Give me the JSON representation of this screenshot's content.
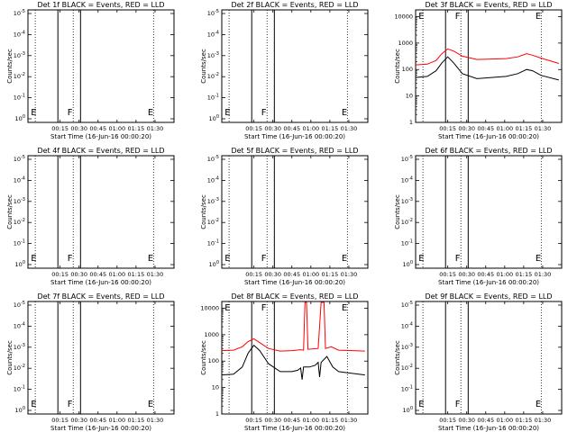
{
  "figure": {
    "colors": {
      "events": "#000000",
      "lld": "#ff0000",
      "axes": "#000000",
      "background": "#ffffff"
    }
  },
  "chart_data": [
    {
      "type": "line",
      "title": "Det 1f BLACK = Events, RED = LLD",
      "xlabel": "Start Time (16-Jun-16 00:00:20)",
      "ylabel": "Counts/sec",
      "xticks": [
        "00:15",
        "00:30",
        "00:45",
        "01:00",
        "01:15",
        "01:30"
      ],
      "yticks": [
        "10^0",
        "10^-1",
        "10^-2",
        "10^-3",
        "10^-4",
        "10^-5"
      ],
      "ylog": true,
      "empty": true,
      "interval_markers": [
        "E",
        "F",
        "E"
      ],
      "series": []
    },
    {
      "type": "line",
      "title": "Det 2f BLACK = Events, RED = LLD",
      "xlabel": "Start Time (16-Jun-16 00:00:20)",
      "ylabel": "Counts/sec",
      "xticks": [
        "00:15",
        "00:30",
        "00:45",
        "01:00",
        "01:15",
        "01:30"
      ],
      "yticks": [
        "10^0",
        "10^-1",
        "10^-2",
        "10^-3",
        "10^-4",
        "10^-5"
      ],
      "ylog": true,
      "empty": true,
      "interval_markers": [
        "E",
        "F",
        "E"
      ],
      "series": []
    },
    {
      "type": "line",
      "title": "Det 3f BLACK = Events, RED = LLD",
      "xlabel": "Start Time (16-Jun-16 00:00:20)",
      "ylabel": "Counts/sec",
      "xticks": [
        "00:15",
        "00:30",
        "00:45",
        "01:00",
        "01:15",
        "01:30"
      ],
      "yticks": [
        "1",
        "10",
        "100",
        "1000",
        "10000"
      ],
      "ylog": true,
      "empty": false,
      "interval_markers": [
        "E",
        "F",
        "E"
      ],
      "series": [
        {
          "color": "#ff0000",
          "pts": [
            [
              0,
              150
            ],
            [
              8,
              160
            ],
            [
              14,
              220
            ],
            [
              18,
              400
            ],
            [
              22,
              600
            ],
            [
              26,
              500
            ],
            [
              32,
              320
            ],
            [
              42,
              240
            ],
            [
              52,
              250
            ],
            [
              62,
              260
            ],
            [
              70,
              300
            ],
            [
              76,
              400
            ],
            [
              80,
              350
            ],
            [
              86,
              270
            ],
            [
              98,
              170
            ]
          ]
        },
        {
          "color": "#000000",
          "pts": [
            [
              0,
              50
            ],
            [
              8,
              55
            ],
            [
              14,
              90
            ],
            [
              18,
              180
            ],
            [
              22,
              300
            ],
            [
              26,
              180
            ],
            [
              32,
              70
            ],
            [
              42,
              45
            ],
            [
              52,
              50
            ],
            [
              62,
              55
            ],
            [
              70,
              70
            ],
            [
              76,
              100
            ],
            [
              80,
              90
            ],
            [
              86,
              60
            ],
            [
              98,
              40
            ]
          ]
        }
      ]
    },
    {
      "type": "line",
      "title": "Det 4f BLACK = Events, RED = LLD",
      "xlabel": "Start Time (16-Jun-16 00:00:20)",
      "ylabel": "Counts/sec",
      "xticks": [
        "00:15",
        "00:30",
        "00:45",
        "01:00",
        "01:15",
        "01:30"
      ],
      "yticks": [
        "10^0",
        "10^-1",
        "10^-2",
        "10^-3",
        "10^-4",
        "10^-5"
      ],
      "ylog": true,
      "empty": true,
      "interval_markers": [
        "E",
        "F",
        "E"
      ],
      "series": []
    },
    {
      "type": "line",
      "title": "Det 5f BLACK = Events, RED = LLD",
      "xlabel": "Start Time (16-Jun-16 00:00:20)",
      "ylabel": "Counts/sec",
      "xticks": [
        "00:15",
        "00:30",
        "00:45",
        "01:00",
        "01:15",
        "01:30"
      ],
      "yticks": [
        "10^0",
        "10^-1",
        "10^-2",
        "10^-3",
        "10^-4",
        "10^-5"
      ],
      "ylog": true,
      "empty": true,
      "interval_markers": [
        "E",
        "F",
        "E"
      ],
      "series": []
    },
    {
      "type": "line",
      "title": "Det 6f BLACK = Events, RED = LLD",
      "xlabel": "Start Time (16-Jun-16 00:00:20)",
      "ylabel": "Counts/sec",
      "xticks": [
        "00:15",
        "00:30",
        "00:45",
        "01:00",
        "01:15",
        "01:30"
      ],
      "yticks": [
        "10^0",
        "10^-1",
        "10^-2",
        "10^-3",
        "10^-4",
        "10^-5"
      ],
      "ylog": true,
      "empty": true,
      "interval_markers": [
        "E",
        "F",
        "E"
      ],
      "series": []
    },
    {
      "type": "line",
      "title": "Det 7f BLACK = Events, RED = LLD",
      "xlabel": "Start Time (16-Jun-16 00:00:20)",
      "ylabel": "Counts/sec",
      "xticks": [
        "00:15",
        "00:30",
        "00:45",
        "01:00",
        "01:15",
        "01:30"
      ],
      "yticks": [
        "10^0",
        "10^-1",
        "10^-2",
        "10^-3",
        "10^-4",
        "10^-5"
      ],
      "ylog": true,
      "empty": true,
      "interval_markers": [
        "E",
        "F",
        "E"
      ],
      "series": []
    },
    {
      "type": "line",
      "title": "Det 8f BLACK = Events, RED = LLD",
      "xlabel": "Start Time (16-Jun-16 00:00:20)",
      "ylabel": "Counts/sec",
      "xticks": [
        "00:15",
        "00:30",
        "00:45",
        "01:00",
        "01:15",
        "01:30"
      ],
      "yticks": [
        "1",
        "10",
        "100",
        "1000",
        "10000"
      ],
      "ylog": true,
      "empty": false,
      "interval_markers": [
        "E",
        "F",
        "E"
      ],
      "series": [
        {
          "color": "#ff0000",
          "pts": [
            [
              0,
              250
            ],
            [
              8,
              260
            ],
            [
              14,
              350
            ],
            [
              18,
              550
            ],
            [
              22,
              700
            ],
            [
              26,
              500
            ],
            [
              32,
              300
            ],
            [
              40,
              240
            ],
            [
              48,
              250
            ],
            [
              54,
              270
            ],
            [
              56,
              260
            ],
            [
              57,
              18000
            ],
            [
              58,
              18000
            ],
            [
              59,
              280
            ],
            [
              66,
              300
            ],
            [
              68,
              18000
            ],
            [
              70,
              18000
            ],
            [
              71,
              300
            ],
            [
              75,
              350
            ],
            [
              80,
              260
            ],
            [
              98,
              240
            ]
          ]
        },
        {
          "color": "#000000",
          "pts": [
            [
              0,
              30
            ],
            [
              8,
              32
            ],
            [
              14,
              60
            ],
            [
              18,
              200
            ],
            [
              22,
              400
            ],
            [
              26,
              250
            ],
            [
              32,
              80
            ],
            [
              40,
              40
            ],
            [
              48,
              40
            ],
            [
              52,
              45
            ],
            [
              54,
              55
            ],
            [
              55,
              20
            ],
            [
              56,
              60
            ],
            [
              60,
              60
            ],
            [
              64,
              70
            ],
            [
              66,
              90
            ],
            [
              67,
              25
            ],
            [
              68,
              90
            ],
            [
              72,
              150
            ],
            [
              76,
              60
            ],
            [
              80,
              40
            ],
            [
              98,
              30
            ]
          ]
        }
      ]
    },
    {
      "type": "line",
      "title": "Det 9f BLACK = Events, RED = LLD",
      "xlabel": "Start Time (16-Jun-16 00:00:20)",
      "ylabel": "Counts/sec",
      "xticks": [
        "00:15",
        "00:30",
        "00:45",
        "01:00",
        "01:15",
        "01:30"
      ],
      "yticks": [
        "10^0",
        "10^-1",
        "10^-2",
        "10^-3",
        "10^-4",
        "10^-5"
      ],
      "ylog": true,
      "empty": true,
      "interval_markers": [
        "E",
        "F",
        "E"
      ],
      "series": []
    }
  ]
}
